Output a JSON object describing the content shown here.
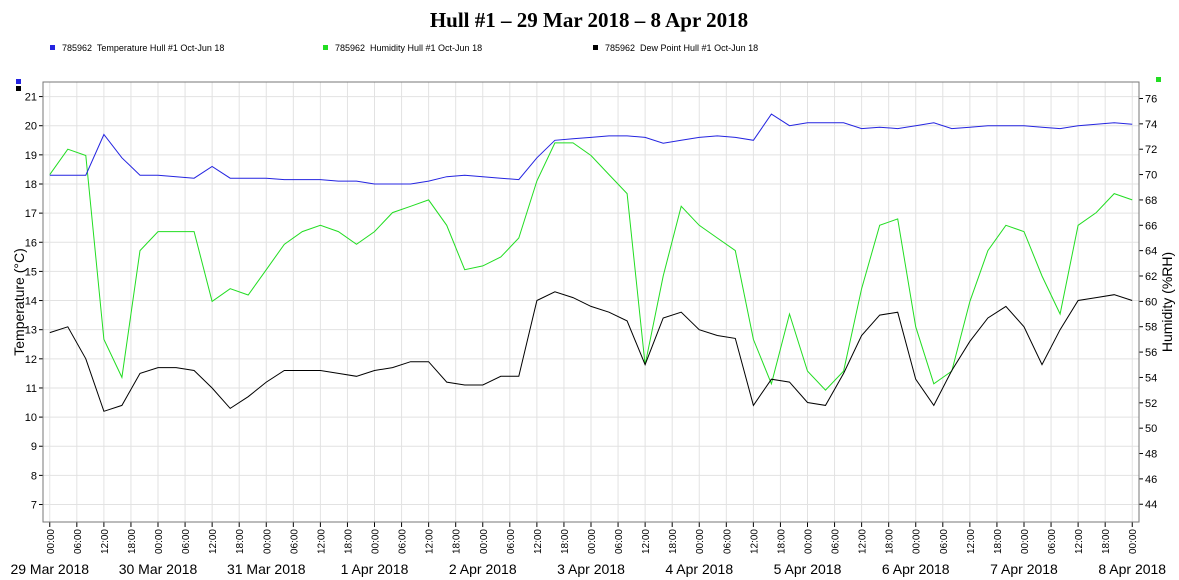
{
  "chart_data": {
    "type": "line",
    "title": "Hull #1 – 29 Mar 2018 – 8 Apr 2018",
    "ylabel": "Temperature (°C)",
    "y2label": "Humidity (%RH)",
    "x": [
      0,
      4,
      8,
      12,
      16,
      20,
      24,
      28,
      32,
      36,
      40,
      44,
      48,
      52,
      56,
      60,
      64,
      68,
      72,
      76,
      80,
      84,
      88,
      92,
      96,
      100,
      104,
      108,
      112,
      116,
      120,
      124,
      128,
      132,
      136,
      140,
      144,
      148,
      152,
      156,
      160,
      164,
      168,
      172,
      176,
      180,
      184,
      188,
      192,
      196,
      200,
      204,
      208,
      212,
      216,
      220,
      224,
      228,
      232,
      236,
      240
    ],
    "xlim": [
      -1.5,
      241.5
    ],
    "xticks": [
      {
        "value": 0,
        "label": "00:00"
      },
      {
        "value": 6,
        "label": "06:00"
      },
      {
        "value": 12,
        "label": "12:00"
      },
      {
        "value": 18,
        "label": "18:00"
      },
      {
        "value": 24,
        "label": "00:00"
      },
      {
        "value": 30,
        "label": "06:00"
      },
      {
        "value": 36,
        "label": "12:00"
      },
      {
        "value": 42,
        "label": "18:00"
      },
      {
        "value": 48,
        "label": "00:00"
      },
      {
        "value": 54,
        "label": "06:00"
      },
      {
        "value": 60,
        "label": "12:00"
      },
      {
        "value": 66,
        "label": "18:00"
      },
      {
        "value": 72,
        "label": "00:00"
      },
      {
        "value": 78,
        "label": "06:00"
      },
      {
        "value": 84,
        "label": "12:00"
      },
      {
        "value": 90,
        "label": "18:00"
      },
      {
        "value": 96,
        "label": "00:00"
      },
      {
        "value": 102,
        "label": "06:00"
      },
      {
        "value": 108,
        "label": "12:00"
      },
      {
        "value": 114,
        "label": "18:00"
      },
      {
        "value": 120,
        "label": "00:00"
      },
      {
        "value": 126,
        "label": "06:00"
      },
      {
        "value": 132,
        "label": "12:00"
      },
      {
        "value": 138,
        "label": "18:00"
      },
      {
        "value": 144,
        "label": "00:00"
      },
      {
        "value": 150,
        "label": "06:00"
      },
      {
        "value": 156,
        "label": "12:00"
      },
      {
        "value": 162,
        "label": "18:00"
      },
      {
        "value": 168,
        "label": "00:00"
      },
      {
        "value": 174,
        "label": "06:00"
      },
      {
        "value": 180,
        "label": "12:00"
      },
      {
        "value": 186,
        "label": "18:00"
      },
      {
        "value": 192,
        "label": "00:00"
      },
      {
        "value": 198,
        "label": "06:00"
      },
      {
        "value": 204,
        "label": "12:00"
      },
      {
        "value": 210,
        "label": "18:00"
      },
      {
        "value": 216,
        "label": "00:00"
      },
      {
        "value": 222,
        "label": "06:00"
      },
      {
        "value": 228,
        "label": "12:00"
      },
      {
        "value": 234,
        "label": "18:00"
      },
      {
        "value": 240,
        "label": "00:00"
      }
    ],
    "day_labels": [
      {
        "value": 0,
        "label": "29 Mar 2018"
      },
      {
        "value": 24,
        "label": "30 Mar 2018"
      },
      {
        "value": 48,
        "label": "31 Mar 2018"
      },
      {
        "value": 72,
        "label": "1 Apr 2018"
      },
      {
        "value": 96,
        "label": "2 Apr 2018"
      },
      {
        "value": 120,
        "label": "3 Apr 2018"
      },
      {
        "value": 144,
        "label": "4 Apr 2018"
      },
      {
        "value": 168,
        "label": "5 Apr 2018"
      },
      {
        "value": 192,
        "label": "6 Apr 2018"
      },
      {
        "value": 216,
        "label": "7 Apr 2018"
      },
      {
        "value": 240,
        "label": "8 Apr 2018"
      }
    ],
    "ylim": [
      6.4,
      21.5
    ],
    "yticks": [
      7,
      8,
      9,
      10,
      11,
      12,
      13,
      14,
      15,
      16,
      17,
      18,
      19,
      20,
      21
    ],
    "y2lim": [
      42.6,
      77.3
    ],
    "y2ticks": [
      44,
      46,
      48,
      50,
      52,
      54,
      56,
      58,
      60,
      62,
      64,
      66,
      68,
      70,
      72,
      74,
      76
    ],
    "grid": true,
    "series": [
      {
        "name": "785962  Temperature Hull #1 Oct-Jun 18",
        "color": "#2424e0",
        "values": [
          18.3,
          18.3,
          18.3,
          19.7,
          18.9,
          18.3,
          18.3,
          18.25,
          18.2,
          18.6,
          18.2,
          18.2,
          18.2,
          18.15,
          18.15,
          18.15,
          18.1,
          18.1,
          18.0,
          18.0,
          18.0,
          18.1,
          18.25,
          18.3,
          18.25,
          18.2,
          18.15,
          18.9,
          19.5,
          19.55,
          19.6,
          19.65,
          19.65,
          19.6,
          19.4,
          19.5,
          19.6,
          19.65,
          19.6,
          19.5,
          20.4,
          20.0,
          20.1,
          20.1,
          20.1,
          19.9,
          19.95,
          19.9,
          20.0,
          20.1,
          19.9,
          19.95,
          20.0,
          20.0,
          20.0,
          19.95,
          19.9,
          20.0,
          20.05,
          20.1,
          20.05
        ]
      },
      {
        "name": "785962  Humidity Hull #1 Oct-Jun 18",
        "color": "#22dd22",
        "axis": "y2",
        "values": [
          70,
          72,
          71.5,
          57,
          54,
          64,
          65.5,
          65.5,
          65.5,
          60,
          61,
          60.5,
          62.5,
          64.5,
          65.5,
          66,
          65.5,
          64.5,
          65.5,
          67,
          67.5,
          68,
          66,
          62.5,
          62.8,
          63.5,
          65,
          69.5,
          72.5,
          72.5,
          71.5,
          70,
          68.5,
          55,
          62,
          67.5,
          66,
          65,
          64,
          57,
          53.5,
          59,
          54.5,
          53,
          54.5,
          61,
          66,
          66.5,
          58,
          53.5,
          54.5,
          60,
          64,
          66,
          65.5,
          62,
          59,
          66,
          67,
          68.5,
          68
        ]
      },
      {
        "name": "785962  Dew Point Hull #1 Oct-Jun 18",
        "color": "#000000",
        "values": [
          12.9,
          13.1,
          12.0,
          10.2,
          10.4,
          11.5,
          11.7,
          11.7,
          11.6,
          11.0,
          10.3,
          10.7,
          11.2,
          11.6,
          11.6,
          11.6,
          11.5,
          11.4,
          11.6,
          11.7,
          11.9,
          11.9,
          11.2,
          11.1,
          11.1,
          11.4,
          11.4,
          14.0,
          14.3,
          14.1,
          13.8,
          13.6,
          13.3,
          11.8,
          13.4,
          13.6,
          13.0,
          12.8,
          12.7,
          10.4,
          11.3,
          11.2,
          10.5,
          10.4,
          11.5,
          12.8,
          13.5,
          13.6,
          11.3,
          10.4,
          11.6,
          12.6,
          13.4,
          13.8,
          13.1,
          11.8,
          13.0,
          14.0,
          14.1,
          14.2,
          14.0
        ]
      }
    ]
  }
}
